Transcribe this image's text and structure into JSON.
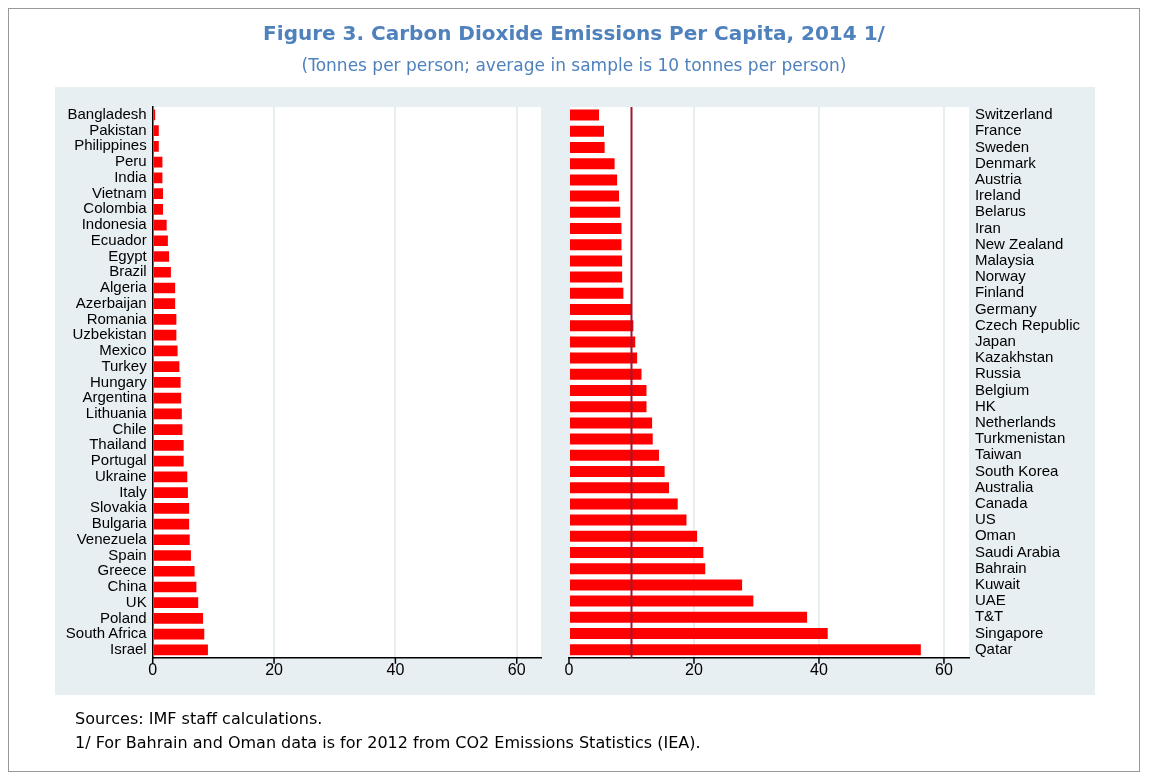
{
  "chart_data": [
    {
      "type": "bar",
      "orientation": "horizontal",
      "title": "Figure 3. Carbon Dioxide Emissions Per Capita, 2014 1/",
      "subtitle": "(Tonnes per person; average in sample is 10 tonnes per person)",
      "categories": [
        "Bangladesh",
        "Pakistan",
        "Philippines",
        "Peru",
        "India",
        "Vietnam",
        "Colombia",
        "Indonesia",
        "Ecuador",
        "Egypt",
        "Brazil",
        "Algeria",
        "Azerbaijan",
        "Romania",
        "Uzbekistan",
        "Mexico",
        "Turkey",
        "Hungary",
        "Argentina",
        "Lithuania",
        "Chile",
        "Thailand",
        "Portugal",
        "Ukraine",
        "Italy",
        "Slovakia",
        "Bulgaria",
        "Venezuela",
        "Spain",
        "Greece",
        "China",
        "UK",
        "Poland",
        "South Africa",
        "Israel"
      ],
      "values": [
        0.4,
        1.0,
        1.0,
        1.6,
        1.6,
        1.7,
        1.7,
        2.3,
        2.5,
        2.7,
        3.0,
        3.7,
        3.7,
        3.9,
        3.9,
        4.1,
        4.4,
        4.6,
        4.7,
        4.8,
        4.9,
        5.1,
        5.1,
        5.7,
        5.8,
        6.0,
        6.0,
        6.1,
        6.3,
        6.9,
        7.2,
        7.5,
        8.3,
        8.5,
        9.1
      ],
      "color": "#ff0000",
      "xlim": [
        0,
        64
      ],
      "xticks": [
        0,
        20,
        40,
        60
      ],
      "grid": "x"
    },
    {
      "type": "bar",
      "orientation": "horizontal",
      "categories": [
        "Switzerland",
        "France",
        "Sweden",
        "Denmark",
        "Austria",
        "Ireland",
        "Belarus",
        "Iran",
        "New Zealand",
        "Malaysia",
        "Norway",
        "Finland",
        "Germany",
        "Czech Republic",
        "Japan",
        "Kazakhstan",
        "Russia",
        "Belgium",
        "HK",
        "Netherlands",
        "Turkmenistan",
        "Taiwan",
        "South Korea",
        "Australia",
        "Canada",
        "US",
        "Oman",
        "Saudi Arabia",
        "Bahrain",
        "Kuwait",
        "UAE",
        "T&T",
        "Singapore",
        "Qatar"
      ],
      "values": [
        4.8,
        5.6,
        5.7,
        7.3,
        7.7,
        8.0,
        8.2,
        8.4,
        8.4,
        8.5,
        8.5,
        8.7,
        10.0,
        10.3,
        10.6,
        10.9,
        11.6,
        12.4,
        12.4,
        13.3,
        13.4,
        14.4,
        15.3,
        16.0,
        17.4,
        18.8,
        20.5,
        21.5,
        21.8,
        27.7,
        29.5,
        38.1,
        41.4,
        56.3
      ],
      "color": "#ff0000",
      "xlim": [
        0,
        64
      ],
      "xticks": [
        0,
        20,
        40,
        60
      ],
      "grid": "x",
      "ref_lines": [
        {
          "axis": "x",
          "value": 10,
          "color": "#a01830"
        }
      ],
      "annotations": [
        "Sources: IMF staff calculations.",
        "1/ For Bahrain and Oman data is for 2012 from CO2 Emissions Statistics (IEA)."
      ]
    }
  ]
}
